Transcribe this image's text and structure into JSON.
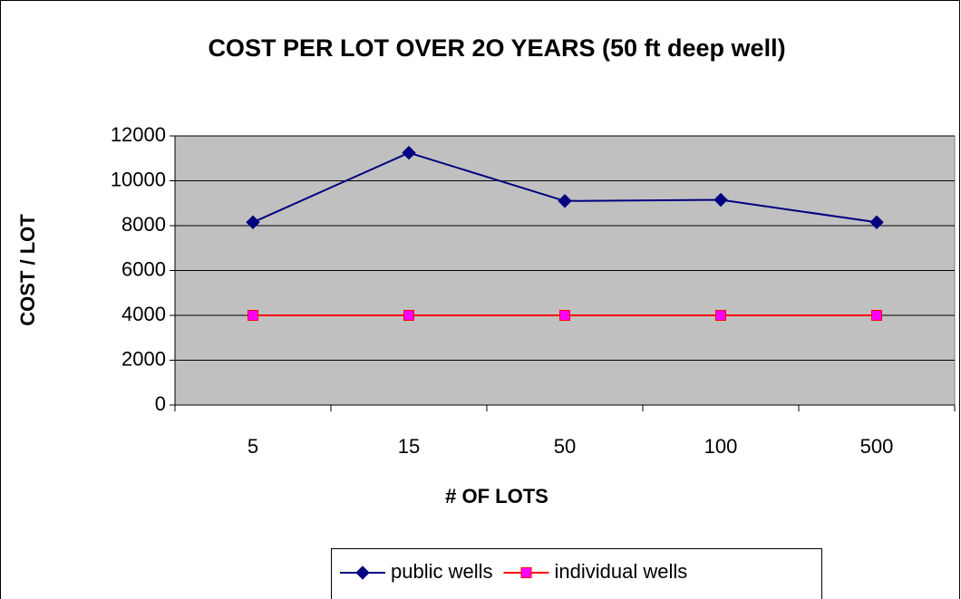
{
  "chart_data": {
    "type": "line",
    "title": "COST PER LOT OVER 2O YEARS (50 ft deep well)",
    "x_label": "# OF LOTS",
    "y_label": "COST / LOT",
    "categories": [
      "5",
      "15",
      "50",
      "100",
      "500"
    ],
    "series": [
      {
        "name": "public wells",
        "color": "#000080",
        "marker": "diamond",
        "marker_color": "#000080",
        "values": [
          8150,
          11250,
          9100,
          9150,
          8150
        ]
      },
      {
        "name": "individual wells",
        "color": "#ff0000",
        "marker": "square",
        "marker_color": "#ff00ff",
        "values": [
          4000,
          4000,
          4000,
          4000,
          4000
        ]
      }
    ],
    "ylim": [
      0,
      12000
    ],
    "yticks": [
      0,
      2000,
      4000,
      6000,
      8000,
      10000,
      12000
    ],
    "grid": true,
    "legend": "bottom"
  }
}
